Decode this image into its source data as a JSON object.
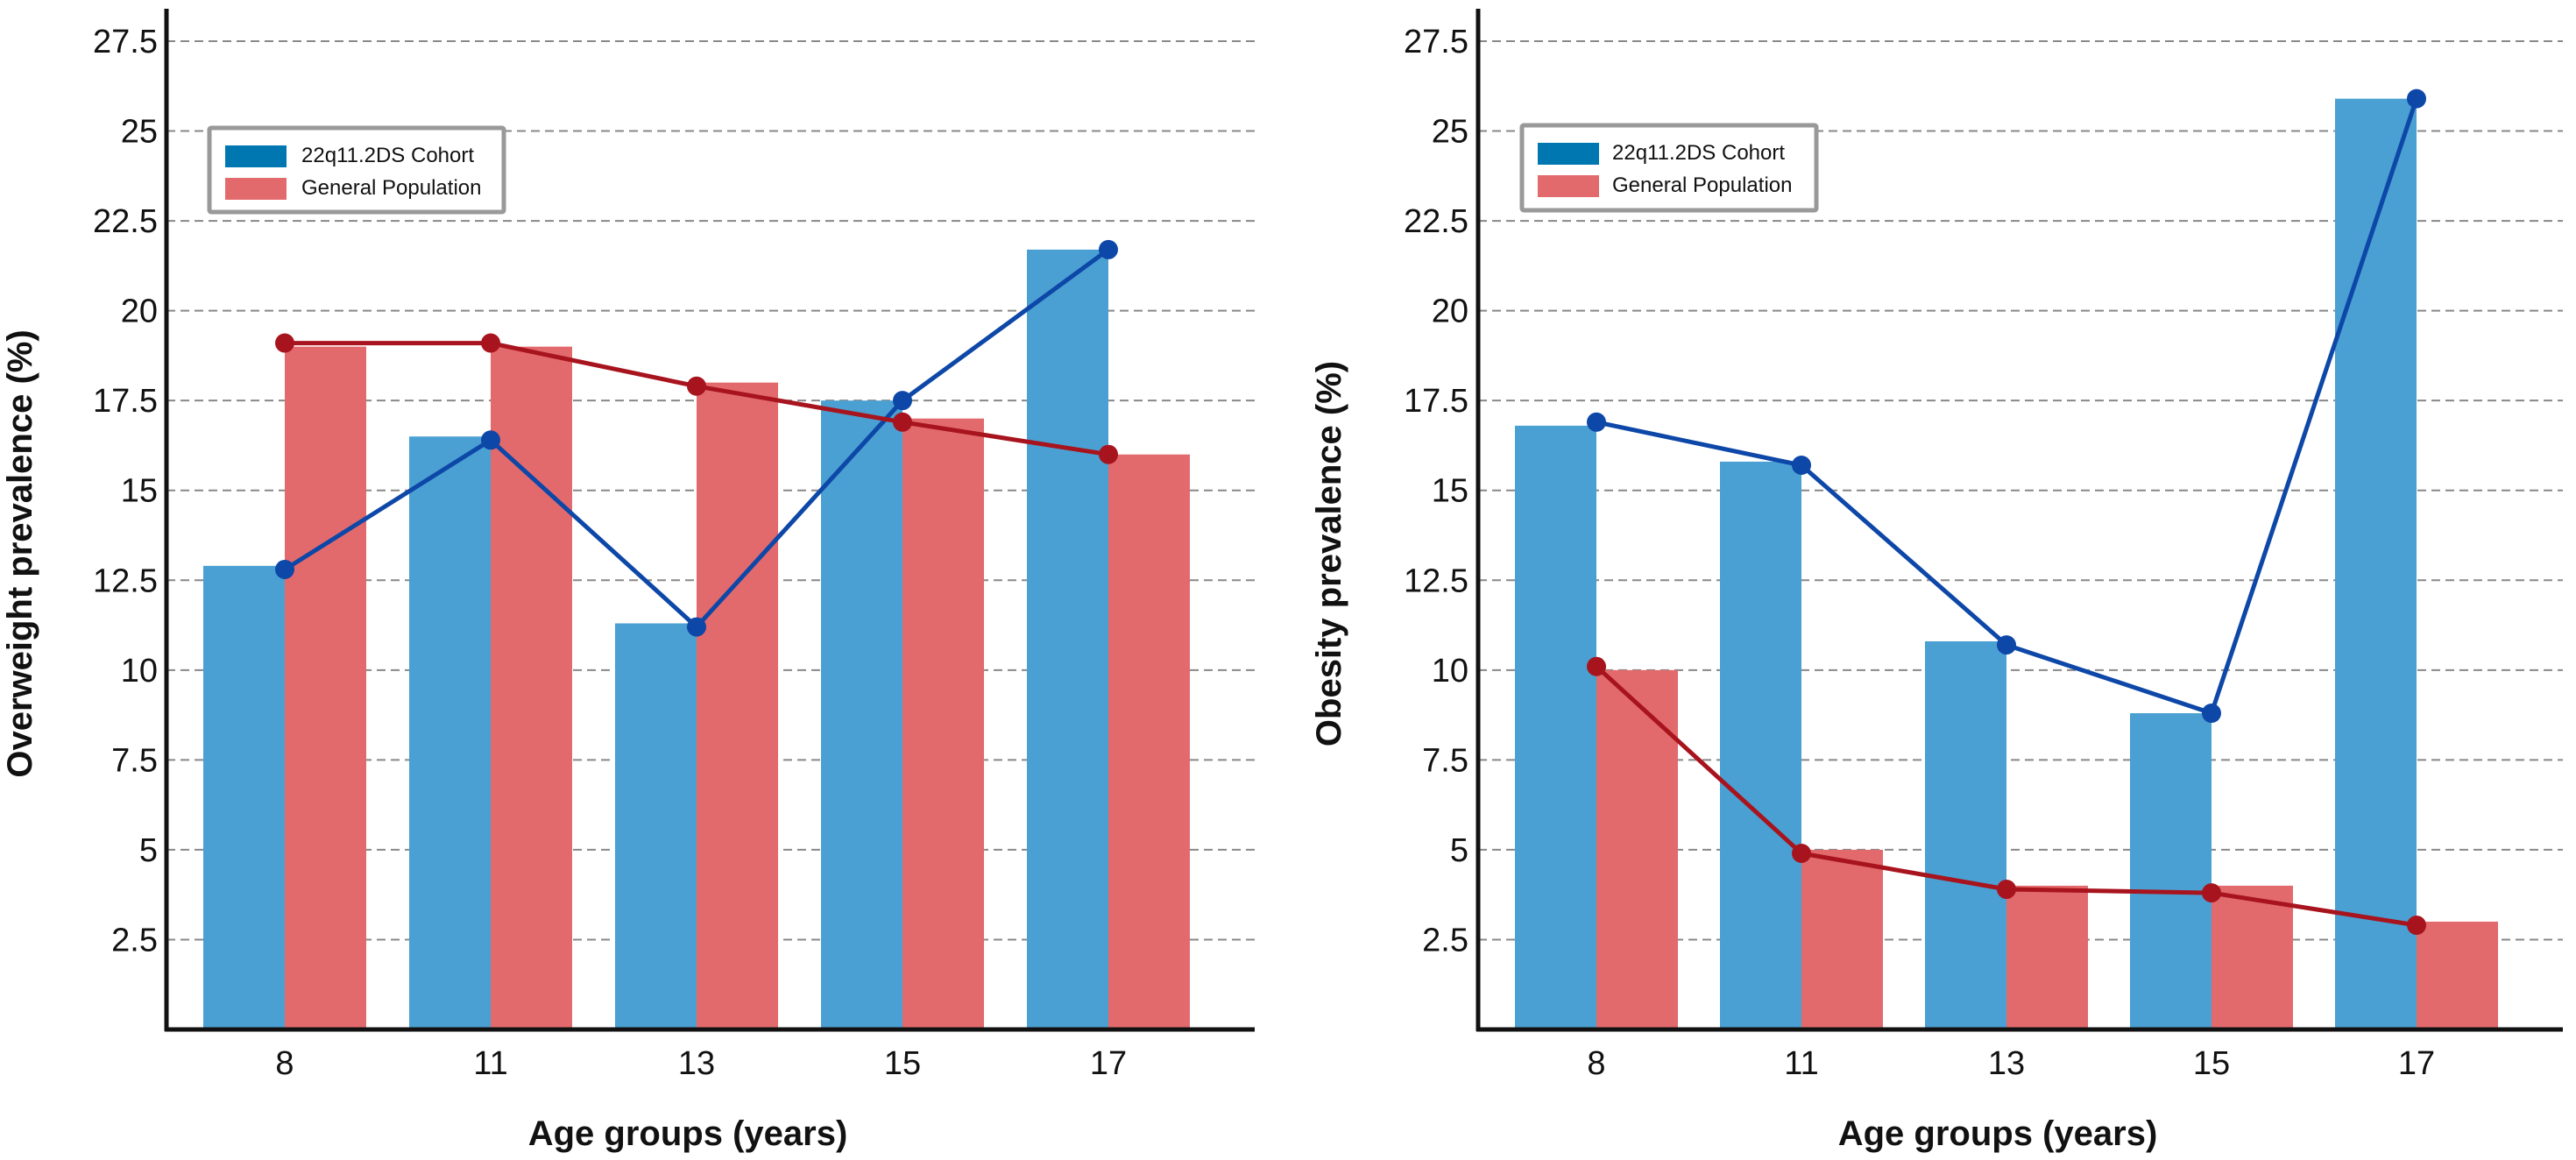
{
  "chart_data": [
    {
      "type": "bar",
      "title": "",
      "xlabel": "Age groups (years)",
      "ylabel": "Overweight prevalence (%)",
      "categories": [
        "8",
        "11",
        "13",
        "15",
        "17"
      ],
      "ylim": [
        0,
        28
      ],
      "yticks": [
        2.5,
        5,
        7.5,
        10,
        12.5,
        15,
        17.5,
        20,
        22.5,
        25,
        27.5
      ],
      "ytick_labels": [
        "2.5",
        "5",
        "7.5",
        "10",
        "12.5",
        "15",
        "17.5",
        "20",
        "22.5",
        "25",
        "27.5"
      ],
      "grid": true,
      "legend_position": "top-left",
      "series": [
        {
          "name": "22q11.2DS Cohort",
          "legend_swatch_color": "#0077b0",
          "bar_color": "#4aa0d2",
          "line_color": "#0d47a8",
          "values": [
            12.9,
            16.5,
            11.3,
            17.5,
            21.7
          ],
          "line_values": [
            12.8,
            16.4,
            11.2,
            17.5,
            21.7
          ]
        },
        {
          "name": "General Population",
          "legend_swatch_color": "#e36a6c",
          "bar_color": "#e36a6c",
          "line_color": "#a8141e",
          "values": [
            19.0,
            19.0,
            18.0,
            17.0,
            16.0
          ],
          "line_values": [
            19.1,
            19.1,
            17.9,
            16.9,
            16.0
          ]
        }
      ]
    },
    {
      "type": "bar",
      "title": "",
      "xlabel": "Age groups (years)",
      "ylabel": "Obesity prevalence (%)",
      "categories": [
        "8",
        "11",
        "13",
        "15",
        "17"
      ],
      "ylim": [
        0,
        28
      ],
      "yticks": [
        2.5,
        5,
        7.5,
        10,
        12.5,
        15,
        17.5,
        20,
        22.5,
        25,
        27.5
      ],
      "ytick_labels": [
        "2.5",
        "5",
        "7.5",
        "10",
        "12.5",
        "15",
        "17.5",
        "20",
        "22.5",
        "25",
        "27.5"
      ],
      "grid": true,
      "legend_position": "top-left",
      "series": [
        {
          "name": "22q11.2DS Cohort",
          "legend_swatch_color": "#0077b0",
          "bar_color": "#4aa0d2",
          "line_color": "#0d47a8",
          "values": [
            16.8,
            15.8,
            10.8,
            8.8,
            25.9
          ],
          "line_values": [
            16.9,
            15.7,
            10.7,
            8.8,
            25.9
          ]
        },
        {
          "name": "General Population",
          "legend_swatch_color": "#e36a6c",
          "bar_color": "#e36a6c",
          "line_color": "#a8141e",
          "values": [
            10.0,
            5.0,
            4.0,
            4.0,
            3.0
          ],
          "line_values": [
            10.1,
            4.9,
            3.9,
            3.8,
            2.9
          ]
        }
      ]
    }
  ]
}
